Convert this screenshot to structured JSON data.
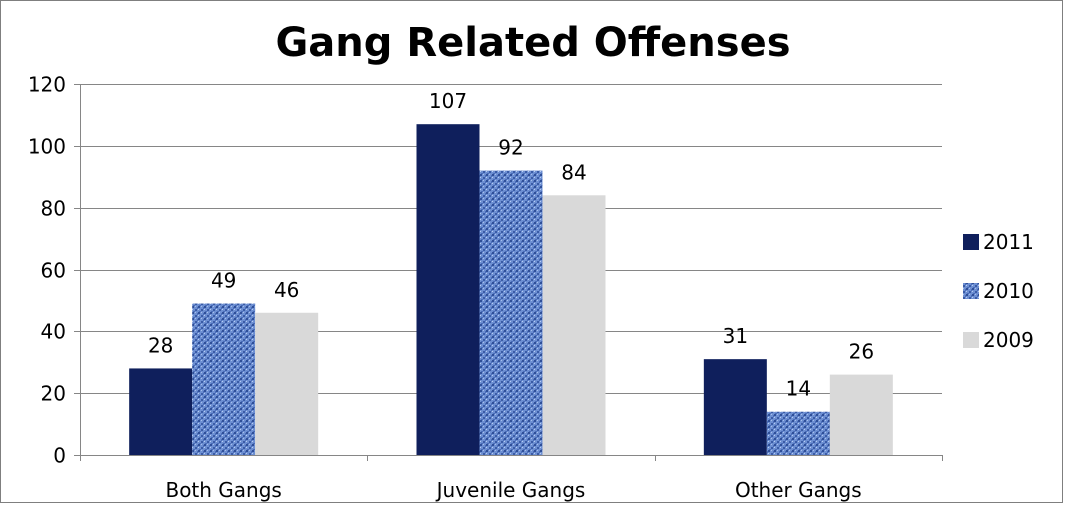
{
  "chart_data": {
    "type": "bar",
    "title": "Gang Related Offenses",
    "categories": [
      "Both Gangs",
      "Juvenile Gangs",
      "Other Gangs"
    ],
    "series": [
      {
        "name": "2011",
        "values": [
          28,
          107,
          31
        ],
        "color": "#0f1f5c"
      },
      {
        "name": "2010",
        "values": [
          49,
          92,
          14
        ],
        "color": "#5f82c8",
        "pattern": "textured"
      },
      {
        "name": "2009",
        "values": [
          46,
          84,
          26
        ],
        "color": "#d9d9d9"
      }
    ],
    "ylim": [
      0,
      120
    ],
    "yticks": [
      0,
      20,
      40,
      60,
      80,
      100,
      120
    ],
    "grid": true,
    "legend": "right"
  }
}
